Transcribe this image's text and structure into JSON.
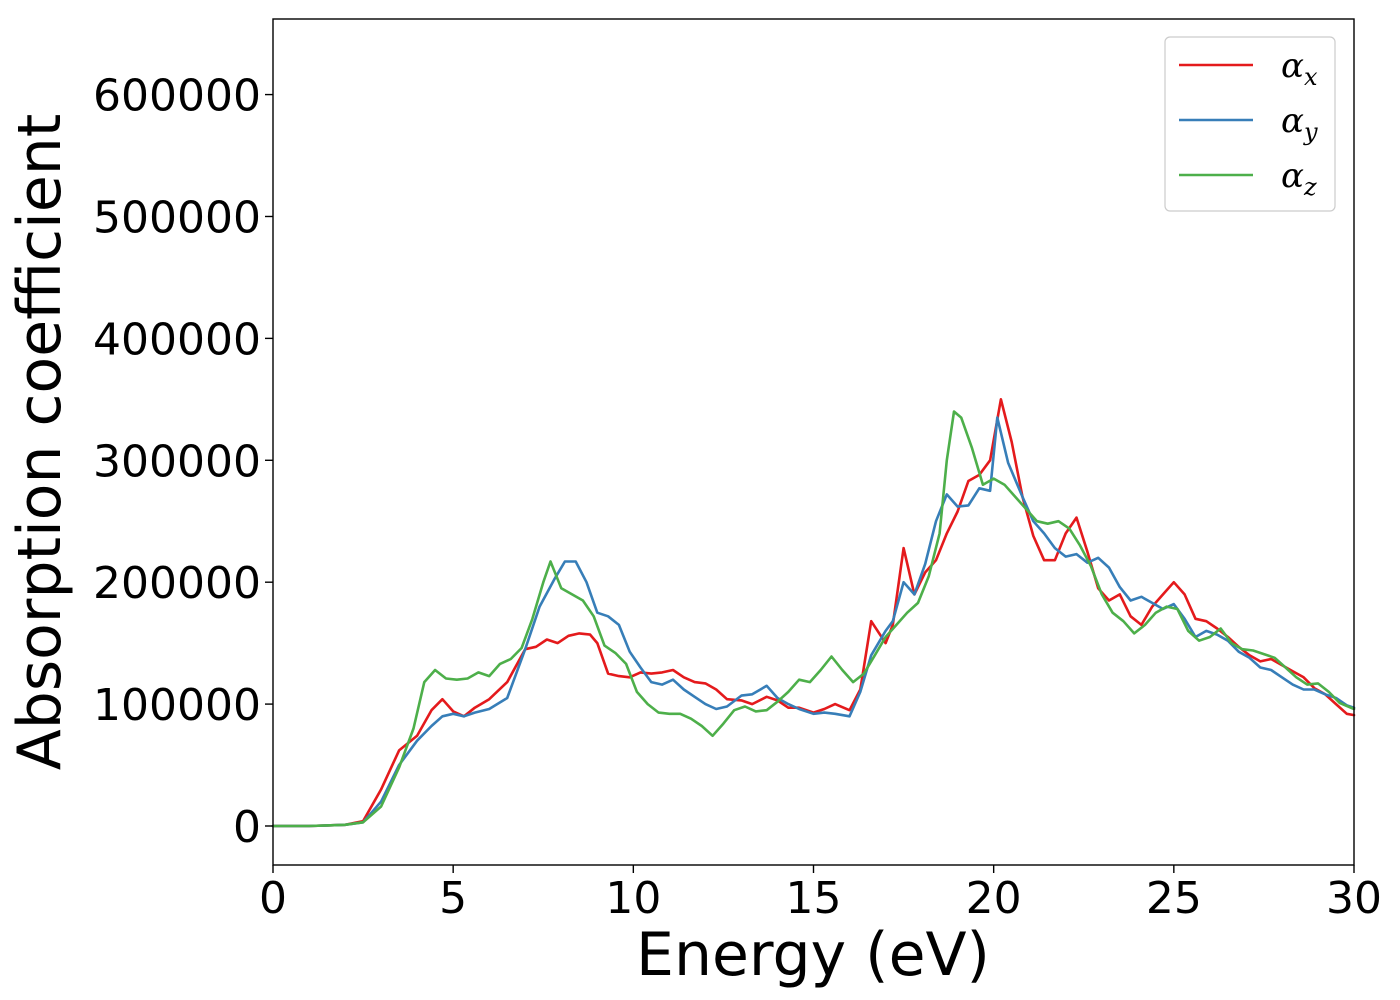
{
  "chart_data": {
    "type": "line",
    "title": "",
    "xlabel": "Energy (eV)",
    "ylabel": "Absorption coefficient",
    "xlim": [
      0,
      30
    ],
    "ylim": [
      -32000,
      662000
    ],
    "xticks": [
      0,
      5,
      10,
      15,
      20,
      25,
      30
    ],
    "xtick_labels": [
      "0",
      "5",
      "10",
      "15",
      "20",
      "25",
      "30"
    ],
    "yticks": [
      0,
      100000,
      200000,
      300000,
      400000,
      500000,
      600000
    ],
    "ytick_labels": [
      "0",
      "100000",
      "200000",
      "300000",
      "400000",
      "500000",
      "600000"
    ],
    "grid": false,
    "legend_position": "top-right",
    "series": [
      {
        "name": "α",
        "subscript": "x",
        "color": "#e41a1c",
        "points": [
          [
            0,
            0
          ],
          [
            1,
            0
          ],
          [
            1.5,
            500
          ],
          [
            2,
            1000
          ],
          [
            2.5,
            4000
          ],
          [
            3,
            30000
          ],
          [
            3.5,
            62000
          ],
          [
            4,
            74000
          ],
          [
            4.4,
            95000
          ],
          [
            4.7,
            104000
          ],
          [
            5,
            94000
          ],
          [
            5.3,
            90000
          ],
          [
            5.6,
            97000
          ],
          [
            6,
            104000
          ],
          [
            6.5,
            118000
          ],
          [
            7,
            145000
          ],
          [
            7.3,
            147000
          ],
          [
            7.6,
            153000
          ],
          [
            7.9,
            150000
          ],
          [
            8.2,
            156000
          ],
          [
            8.5,
            158000
          ],
          [
            8.8,
            157000
          ],
          [
            9,
            150000
          ],
          [
            9.3,
            125000
          ],
          [
            9.6,
            123000
          ],
          [
            9.9,
            122000
          ],
          [
            10.2,
            126000
          ],
          [
            10.5,
            125000
          ],
          [
            10.8,
            126000
          ],
          [
            11.1,
            128000
          ],
          [
            11.4,
            122000
          ],
          [
            11.7,
            118000
          ],
          [
            12,
            117000
          ],
          [
            12.3,
            112000
          ],
          [
            12.6,
            104000
          ],
          [
            13,
            103000
          ],
          [
            13.3,
            100000
          ],
          [
            13.7,
            106000
          ],
          [
            14,
            103000
          ],
          [
            14.3,
            97000
          ],
          [
            14.6,
            97000
          ],
          [
            15,
            93000
          ],
          [
            15.3,
            96000
          ],
          [
            15.6,
            100000
          ],
          [
            16,
            95000
          ],
          [
            16.3,
            112000
          ],
          [
            16.6,
            168000
          ],
          [
            17,
            150000
          ],
          [
            17.2,
            165000
          ],
          [
            17.5,
            228000
          ],
          [
            17.8,
            190000
          ],
          [
            18.1,
            208000
          ],
          [
            18.4,
            218000
          ],
          [
            18.7,
            240000
          ],
          [
            19,
            258000
          ],
          [
            19.3,
            283000
          ],
          [
            19.6,
            288000
          ],
          [
            19.9,
            300000
          ],
          [
            20.2,
            350000
          ],
          [
            20.5,
            315000
          ],
          [
            20.8,
            270000
          ],
          [
            21.1,
            238000
          ],
          [
            21.4,
            218000
          ],
          [
            21.7,
            218000
          ],
          [
            22,
            240000
          ],
          [
            22.3,
            253000
          ],
          [
            22.6,
            225000
          ],
          [
            22.9,
            195000
          ],
          [
            23.2,
            185000
          ],
          [
            23.5,
            190000
          ],
          [
            23.8,
            172000
          ],
          [
            24.1,
            165000
          ],
          [
            24.4,
            180000
          ],
          [
            24.7,
            190000
          ],
          [
            25,
            200000
          ],
          [
            25.3,
            190000
          ],
          [
            25.6,
            170000
          ],
          [
            25.9,
            168000
          ],
          [
            26.2,
            162000
          ],
          [
            26.5,
            155000
          ],
          [
            26.8,
            147000
          ],
          [
            27.1,
            140000
          ],
          [
            27.4,
            135000
          ],
          [
            27.7,
            137000
          ],
          [
            28,
            132000
          ],
          [
            28.3,
            127000
          ],
          [
            28.6,
            122000
          ],
          [
            28.9,
            113000
          ],
          [
            29.2,
            108000
          ],
          [
            29.5,
            100000
          ],
          [
            29.8,
            92000
          ],
          [
            30,
            91000
          ]
        ]
      },
      {
        "name": "α",
        "subscript": "y",
        "color": "#377eb8",
        "points": [
          [
            0,
            0
          ],
          [
            1,
            0
          ],
          [
            1.5,
            500
          ],
          [
            2,
            1000
          ],
          [
            2.5,
            3000
          ],
          [
            3,
            20000
          ],
          [
            3.5,
            50000
          ],
          [
            4,
            70000
          ],
          [
            4.4,
            82000
          ],
          [
            4.7,
            90000
          ],
          [
            5,
            92000
          ],
          [
            5.3,
            90000
          ],
          [
            5.6,
            93000
          ],
          [
            6,
            96000
          ],
          [
            6.5,
            105000
          ],
          [
            7,
            145000
          ],
          [
            7.4,
            180000
          ],
          [
            7.8,
            202000
          ],
          [
            8.1,
            217000
          ],
          [
            8.4,
            217000
          ],
          [
            8.7,
            200000
          ],
          [
            9,
            175000
          ],
          [
            9.3,
            172000
          ],
          [
            9.6,
            165000
          ],
          [
            9.9,
            143000
          ],
          [
            10.2,
            130000
          ],
          [
            10.5,
            118000
          ],
          [
            10.8,
            116000
          ],
          [
            11.1,
            120000
          ],
          [
            11.4,
            112000
          ],
          [
            11.7,
            106000
          ],
          [
            12,
            100000
          ],
          [
            12.3,
            96000
          ],
          [
            12.6,
            98000
          ],
          [
            13,
            107000
          ],
          [
            13.3,
            108000
          ],
          [
            13.7,
            115000
          ],
          [
            14,
            105000
          ],
          [
            14.3,
            100000
          ],
          [
            14.6,
            96000
          ],
          [
            15,
            92000
          ],
          [
            15.3,
            93000
          ],
          [
            15.6,
            92000
          ],
          [
            16,
            90000
          ],
          [
            16.3,
            110000
          ],
          [
            16.6,
            140000
          ],
          [
            17,
            160000
          ],
          [
            17.2,
            168000
          ],
          [
            17.5,
            200000
          ],
          [
            17.8,
            190000
          ],
          [
            18.1,
            215000
          ],
          [
            18.4,
            250000
          ],
          [
            18.7,
            272000
          ],
          [
            19,
            262000
          ],
          [
            19.3,
            263000
          ],
          [
            19.6,
            277000
          ],
          [
            19.9,
            275000
          ],
          [
            20.1,
            335000
          ],
          [
            20.4,
            298000
          ],
          [
            20.8,
            270000
          ],
          [
            21.1,
            250000
          ],
          [
            21.4,
            240000
          ],
          [
            21.7,
            228000
          ],
          [
            22,
            221000
          ],
          [
            22.3,
            223000
          ],
          [
            22.6,
            216000
          ],
          [
            22.9,
            220000
          ],
          [
            23.2,
            212000
          ],
          [
            23.5,
            196000
          ],
          [
            23.8,
            185000
          ],
          [
            24.1,
            188000
          ],
          [
            24.4,
            183000
          ],
          [
            24.7,
            178000
          ],
          [
            25,
            182000
          ],
          [
            25.3,
            170000
          ],
          [
            25.6,
            155000
          ],
          [
            25.9,
            160000
          ],
          [
            26.2,
            157000
          ],
          [
            26.5,
            152000
          ],
          [
            26.8,
            143000
          ],
          [
            27.1,
            138000
          ],
          [
            27.4,
            130000
          ],
          [
            27.7,
            128000
          ],
          [
            28,
            122000
          ],
          [
            28.3,
            116000
          ],
          [
            28.6,
            112000
          ],
          [
            28.9,
            112000
          ],
          [
            29.2,
            108000
          ],
          [
            29.5,
            105000
          ],
          [
            29.8,
            99000
          ],
          [
            30,
            97000
          ]
        ]
      },
      {
        "name": "α",
        "subscript": "z",
        "color": "#4daf4a",
        "points": [
          [
            0,
            0
          ],
          [
            1,
            0
          ],
          [
            1.5,
            500
          ],
          [
            2,
            1000
          ],
          [
            2.5,
            3000
          ],
          [
            3,
            16000
          ],
          [
            3.5,
            48000
          ],
          [
            3.9,
            80000
          ],
          [
            4.2,
            118000
          ],
          [
            4.5,
            128000
          ],
          [
            4.8,
            121000
          ],
          [
            5.1,
            120000
          ],
          [
            5.4,
            121000
          ],
          [
            5.7,
            126000
          ],
          [
            6,
            123000
          ],
          [
            6.3,
            133000
          ],
          [
            6.6,
            137000
          ],
          [
            6.9,
            146000
          ],
          [
            7.2,
            170000
          ],
          [
            7.5,
            200000
          ],
          [
            7.7,
            217000
          ],
          [
            8,
            195000
          ],
          [
            8.3,
            190000
          ],
          [
            8.6,
            185000
          ],
          [
            8.9,
            172000
          ],
          [
            9.2,
            148000
          ],
          [
            9.5,
            142000
          ],
          [
            9.8,
            133000
          ],
          [
            10.1,
            110000
          ],
          [
            10.4,
            100000
          ],
          [
            10.7,
            93000
          ],
          [
            11,
            92000
          ],
          [
            11.3,
            92000
          ],
          [
            11.6,
            88000
          ],
          [
            11.9,
            82000
          ],
          [
            12.2,
            74000
          ],
          [
            12.5,
            84000
          ],
          [
            12.8,
            95000
          ],
          [
            13.1,
            98000
          ],
          [
            13.4,
            94000
          ],
          [
            13.7,
            95000
          ],
          [
            14,
            102000
          ],
          [
            14.3,
            110000
          ],
          [
            14.6,
            120000
          ],
          [
            14.9,
            118000
          ],
          [
            15.2,
            128000
          ],
          [
            15.5,
            139000
          ],
          [
            15.8,
            128000
          ],
          [
            16.1,
            118000
          ],
          [
            16.4,
            125000
          ],
          [
            16.7,
            140000
          ],
          [
            17,
            155000
          ],
          [
            17.3,
            165000
          ],
          [
            17.6,
            175000
          ],
          [
            17.9,
            183000
          ],
          [
            18.2,
            205000
          ],
          [
            18.5,
            240000
          ],
          [
            18.7,
            300000
          ],
          [
            18.9,
            340000
          ],
          [
            19.1,
            335000
          ],
          [
            19.4,
            310000
          ],
          [
            19.7,
            280000
          ],
          [
            20,
            285000
          ],
          [
            20.3,
            280000
          ],
          [
            20.6,
            270000
          ],
          [
            20.9,
            260000
          ],
          [
            21.2,
            250000
          ],
          [
            21.5,
            248000
          ],
          [
            21.8,
            250000
          ],
          [
            22.1,
            244000
          ],
          [
            22.4,
            230000
          ],
          [
            22.7,
            213000
          ],
          [
            23,
            190000
          ],
          [
            23.3,
            175000
          ],
          [
            23.6,
            168000
          ],
          [
            23.9,
            158000
          ],
          [
            24.2,
            165000
          ],
          [
            24.5,
            175000
          ],
          [
            24.8,
            180000
          ],
          [
            25.1,
            178000
          ],
          [
            25.4,
            160000
          ],
          [
            25.7,
            152000
          ],
          [
            26,
            155000
          ],
          [
            26.3,
            162000
          ],
          [
            26.6,
            150000
          ],
          [
            26.9,
            145000
          ],
          [
            27.2,
            144000
          ],
          [
            27.5,
            141000
          ],
          [
            27.8,
            138000
          ],
          [
            28.1,
            130000
          ],
          [
            28.4,
            122000
          ],
          [
            28.7,
            116000
          ],
          [
            29,
            117000
          ],
          [
            29.3,
            110000
          ],
          [
            29.6,
            101000
          ],
          [
            30,
            96000
          ]
        ]
      }
    ]
  }
}
